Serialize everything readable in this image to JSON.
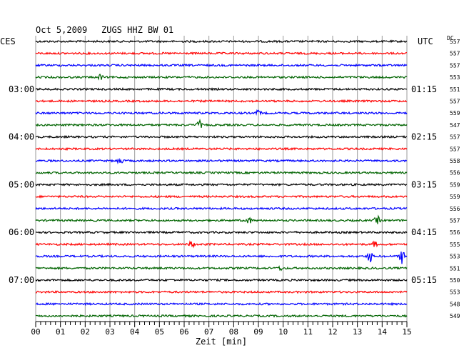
{
  "header": {
    "date": "Oct 5,2009",
    "station": "ZUGS HHZ BW 01",
    "left_zone": "CES",
    "right_zone": "UTC",
    "dc_label": "DC"
  },
  "chart_data": {
    "type": "line",
    "title": "Oct 5,2009   ZUGS HHZ BW 01",
    "xlabel": "Zeit [min]",
    "ylabel": "",
    "xlim": [
      0,
      15
    ],
    "x_ticks": [
      "00",
      "01",
      "02",
      "03",
      "04",
      "05",
      "06",
      "07",
      "08",
      "09",
      "10",
      "11",
      "12",
      "13",
      "14",
      "15"
    ],
    "grid": true,
    "left_hour_labels": [
      {
        "row": 4,
        "label": "03:00"
      },
      {
        "row": 8,
        "label": "04:00"
      },
      {
        "row": 12,
        "label": "05:00"
      },
      {
        "row": 16,
        "label": "06:00"
      },
      {
        "row": 20,
        "label": "07:00"
      }
    ],
    "right_hour_labels": [
      {
        "row": 4,
        "label": "01:15"
      },
      {
        "row": 8,
        "label": "02:15"
      },
      {
        "row": 12,
        "label": "03:15"
      },
      {
        "row": 16,
        "label": "04:15"
      },
      {
        "row": 20,
        "label": "05:15"
      }
    ],
    "trace_colors": [
      "#000000",
      "#ff0000",
      "#0000ff",
      "#006400"
    ],
    "dc_values": [
      "557",
      "557",
      "557",
      "553",
      "551",
      "557",
      "559",
      "547",
      "557",
      "557",
      "558",
      "556",
      "559",
      "559",
      "556",
      "557",
      "556",
      "555",
      "553",
      "551",
      "550",
      "553",
      "548",
      "549"
    ],
    "events": [
      {
        "row": 3,
        "minute": 2.6,
        "amplitude": 4
      },
      {
        "row": 6,
        "minute": 9.0,
        "amplitude": 4
      },
      {
        "row": 7,
        "minute": 6.6,
        "amplitude": 7
      },
      {
        "row": 10,
        "minute": 3.4,
        "amplitude": 6
      },
      {
        "row": 15,
        "minute": 8.6,
        "amplitude": 6
      },
      {
        "row": 15,
        "minute": 13.8,
        "amplitude": 7
      },
      {
        "row": 17,
        "minute": 6.3,
        "amplitude": 5
      },
      {
        "row": 17,
        "minute": 13.7,
        "amplitude": 4
      },
      {
        "row": 18,
        "minute": 13.5,
        "amplitude": 10
      },
      {
        "row": 18,
        "minute": 14.8,
        "amplitude": 10
      },
      {
        "row": 19,
        "minute": 9.9,
        "amplitude": 3
      }
    ]
  }
}
